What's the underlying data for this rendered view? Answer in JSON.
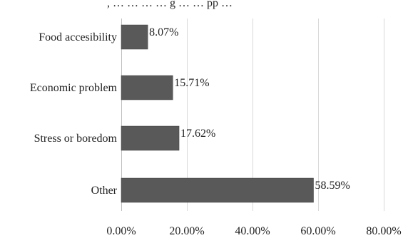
{
  "top_fragment": ", … … … … g … … pp …",
  "chart_data": {
    "type": "bar",
    "orientation": "horizontal",
    "categories": [
      "Food accesibility",
      "Economic problem",
      "Stress or boredom",
      "Other"
    ],
    "values": [
      8.07,
      15.71,
      17.62,
      58.59
    ],
    "value_labels": [
      "8.07%",
      "15.71%",
      "17.62%",
      "58.59%"
    ],
    "xlim": [
      0,
      80
    ],
    "x_ticks": [
      0,
      20,
      40,
      60,
      80
    ],
    "x_tick_labels": [
      "0.00%",
      "20.00%",
      "40.00%",
      "60.00%",
      "80.00%"
    ],
    "grid": true,
    "colors": {
      "bar": "#595959",
      "grid": "#d9d9d9"
    },
    "title": "",
    "xlabel": "",
    "ylabel": ""
  }
}
